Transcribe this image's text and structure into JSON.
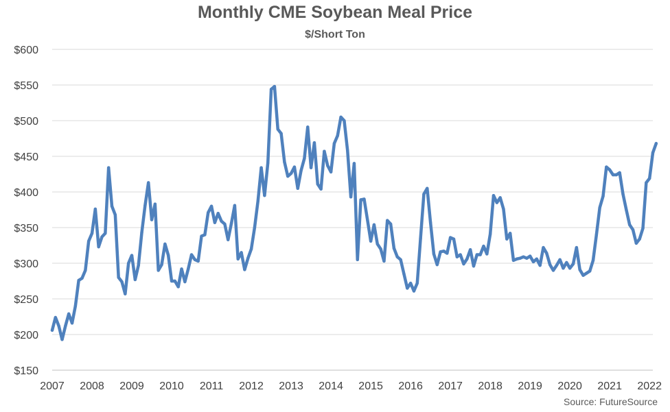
{
  "chart_data": {
    "type": "line",
    "title": "Monthly CME Soybean Meal Price",
    "subtitle": "$/Short Ton",
    "source": "Source: FutureSource",
    "xlabel": "",
    "ylabel": "",
    "ylim": [
      150,
      600
    ],
    "xlim": [
      2007,
      2022.083
    ],
    "yticks": [
      150,
      200,
      250,
      300,
      350,
      400,
      450,
      500,
      550,
      600
    ],
    "ytick_labels": [
      "$150",
      "$200",
      "$250",
      "$300",
      "$350",
      "$400",
      "$450",
      "$500",
      "$550",
      "$600"
    ],
    "xticks": [
      2007,
      2008,
      2009,
      2010,
      2011,
      2012,
      2013,
      2014,
      2015,
      2016,
      2017,
      2018,
      2019,
      2020,
      2021,
      2022
    ],
    "xtick_labels": [
      "2007",
      "2008",
      "2009",
      "2010",
      "2011",
      "2012",
      "2013",
      "2014",
      "2015",
      "2016",
      "2017",
      "2018",
      "2019",
      "2020",
      "2021",
      "2022"
    ],
    "grid": true,
    "legend": "none",
    "color": "#4f81bd",
    "series": [
      {
        "start": "2007-01",
        "frequency": "monthly",
        "values": [
          206,
          224,
          212,
          193,
          212,
          229,
          216,
          240,
          276,
          279,
          290,
          331,
          342,
          376,
          323,
          337,
          342,
          434,
          380,
          368,
          280,
          274,
          257,
          300,
          311,
          277,
          297,
          343,
          381,
          413,
          361,
          383,
          290,
          298,
          327,
          311,
          275,
          275,
          267,
          292,
          274,
          292,
          312,
          305,
          303,
          338,
          340,
          371,
          380,
          357,
          370,
          359,
          355,
          333,
          356,
          381,
          306,
          315,
          291,
          307,
          320,
          350,
          387,
          434,
          395,
          441,
          544,
          548,
          488,
          482,
          442,
          422,
          426,
          435,
          405,
          430,
          447,
          491,
          434,
          469,
          411,
          404,
          457,
          437,
          428,
          468,
          479,
          505,
          500,
          458,
          393,
          440,
          305,
          389,
          390,
          361,
          331,
          354,
          327,
          320,
          303,
          360,
          355,
          321,
          309,
          305,
          285,
          265,
          272,
          261,
          272,
          335,
          397,
          405,
          357,
          313,
          298,
          316,
          317,
          314,
          336,
          334,
          309,
          312,
          299,
          306,
          319,
          296,
          312,
          312,
          324,
          313,
          341,
          395,
          385,
          392,
          376,
          334,
          342,
          304,
          306,
          307,
          309,
          307,
          310,
          302,
          306,
          297,
          322,
          314,
          298,
          290,
          297,
          305,
          293,
          301,
          293,
          299,
          322,
          291,
          283,
          286,
          289,
          304,
          340,
          378,
          394,
          435,
          431,
          424,
          424,
          427,
          397,
          375,
          354,
          347,
          328,
          334,
          349,
          413,
          419,
          455,
          468
        ]
      }
    ]
  }
}
